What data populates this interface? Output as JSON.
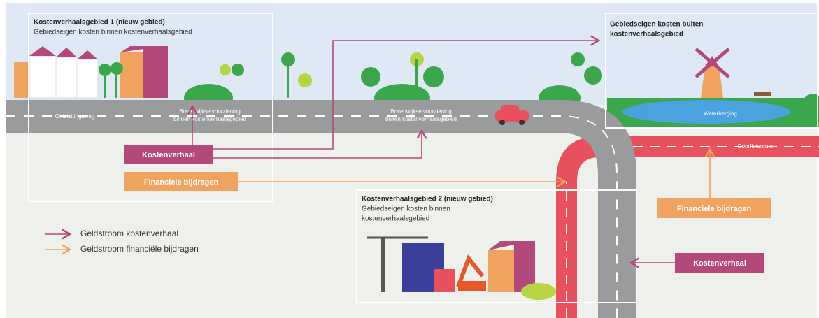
{
  "area_1": {
    "title": "Kostenverhaalsgebied 1 (nieuw gebied)",
    "subtitle": "Gebiedseigen kosten binnen kostenverhaalsgebied"
  },
  "outside_area": {
    "title_lines": [
      "Gebiedseigen kosten buiten",
      "kostenverhaalsgebied"
    ]
  },
  "area_2": {
    "title": "Kostenverhaalsgebied 2 (nieuw gebied)",
    "subtitle_lines": [
      "Gebiedseigen kosten binnen",
      "kostenverhaalsgebied"
    ]
  },
  "road_labels": {
    "access_road": "Ontsluitingsweg",
    "inside": [
      "Bovenwijkse voorziening",
      "binnen kostenverhaalsgebied"
    ],
    "outside": [
      "Bovenwijkse voorziening",
      "buiten kostenverhaalsgebied"
    ],
    "water": "Waterberging",
    "bike_route": "Doorfietsroute"
  },
  "boxes": [
    "Kostenverhaal",
    "Financiele bijdragen",
    "Financiele bijdragen",
    "Kostenverhaal"
  ],
  "legend": [
    "Geldstroom kostenverhaal",
    "Geldstroom financiële bijdragen"
  ]
}
